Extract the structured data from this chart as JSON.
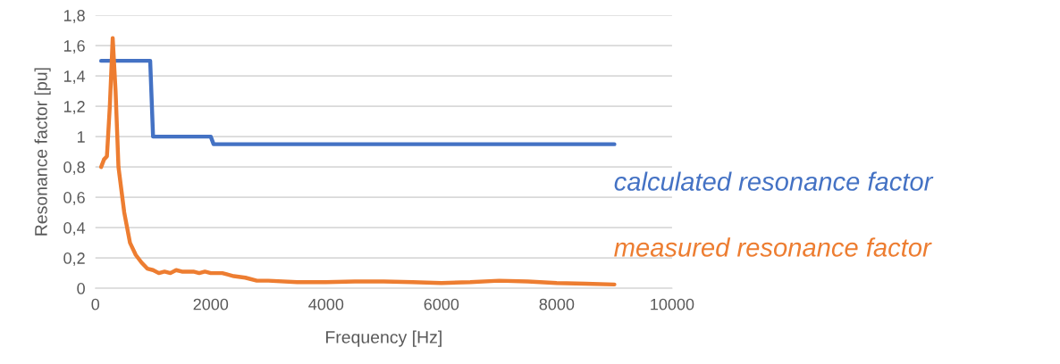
{
  "chart_data": {
    "type": "line",
    "xlabel": "Frequency [Hz]",
    "ylabel": "Resonance factor [pu]",
    "xlim": [
      0,
      10000
    ],
    "xticks": [
      0,
      2000,
      4000,
      6000,
      8000,
      10000
    ],
    "ylim": [
      0,
      1.8
    ],
    "yticks": [
      {
        "value": 0,
        "label": "0"
      },
      {
        "value": 0.2,
        "label": "0,2"
      },
      {
        "value": 0.4,
        "label": "0,4"
      },
      {
        "value": 0.6,
        "label": "0,6"
      },
      {
        "value": 0.8,
        "label": "0,8"
      },
      {
        "value": 1,
        "label": "1"
      },
      {
        "value": 1.2,
        "label": "1,2"
      },
      {
        "value": 1.4,
        "label": "1,4"
      },
      {
        "value": 1.6,
        "label": "1,6"
      },
      {
        "value": 1.8,
        "label": "1,8"
      }
    ],
    "grid": "y",
    "legend": false,
    "series": [
      {
        "name": "calculated resonance factor",
        "color": "#4472c4",
        "x": [
          100,
          950,
          1000,
          2000,
          2050,
          9000
        ],
        "values": [
          1.5,
          1.5,
          1.0,
          1.0,
          0.95,
          0.95
        ]
      },
      {
        "name": "measured resonance factor",
        "color": "#ed7d31",
        "x": [
          100,
          150,
          200,
          250,
          300,
          350,
          400,
          500,
          600,
          700,
          800,
          900,
          1000,
          1100,
          1200,
          1300,
          1400,
          1500,
          1700,
          1800,
          1900,
          2000,
          2200,
          2400,
          2600,
          2800,
          3000,
          3500,
          4000,
          4500,
          5000,
          5500,
          6000,
          6500,
          7000,
          7500,
          8000,
          8500,
          9000
        ],
        "values": [
          0.8,
          0.85,
          0.87,
          1.2,
          1.65,
          1.3,
          0.8,
          0.5,
          0.3,
          0.22,
          0.17,
          0.13,
          0.12,
          0.1,
          0.11,
          0.1,
          0.12,
          0.11,
          0.11,
          0.1,
          0.11,
          0.1,
          0.1,
          0.08,
          0.07,
          0.05,
          0.05,
          0.04,
          0.04,
          0.045,
          0.045,
          0.04,
          0.035,
          0.04,
          0.05,
          0.045,
          0.035,
          0.03,
          0.025
        ]
      }
    ]
  }
}
